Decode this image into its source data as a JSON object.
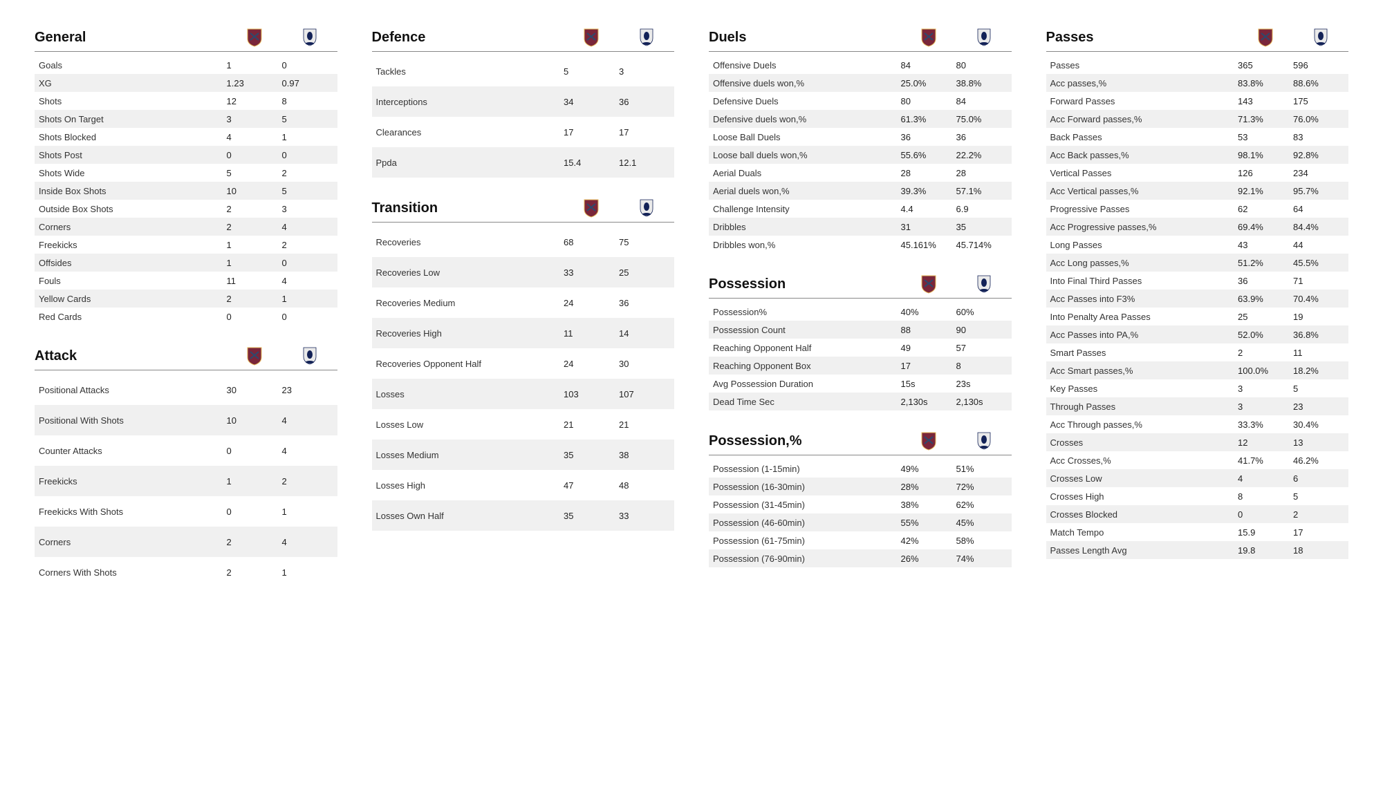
{
  "layout": {
    "team1": "West Ham",
    "team2": "Tottenham",
    "crest1_colors": {
      "body": "#7a263a",
      "accent": "#2c4a6e",
      "outline": "#e6b85a"
    },
    "crest2_colors": {
      "body": "#eaeaea",
      "accent": "#132257",
      "base": "#132257"
    },
    "row_alt_bg": "#f0f0f0",
    "text_color": "#333333",
    "title_font_size": 20,
    "body_font_size": 13
  },
  "sections": {
    "general": {
      "title": "General",
      "rows": [
        {
          "label": "Goals",
          "t1": "1",
          "t2": "0"
        },
        {
          "label": "XG",
          "t1": "1.23",
          "t2": "0.97"
        },
        {
          "label": "Shots",
          "t1": "12",
          "t2": "8"
        },
        {
          "label": "Shots On Target",
          "t1": "3",
          "t2": "5"
        },
        {
          "label": "Shots Blocked",
          "t1": "4",
          "t2": "1"
        },
        {
          "label": "Shots Post",
          "t1": "0",
          "t2": "0"
        },
        {
          "label": "Shots Wide",
          "t1": "5",
          "t2": "2"
        },
        {
          "label": "Inside Box Shots",
          "t1": "10",
          "t2": "5"
        },
        {
          "label": "Outside Box Shots",
          "t1": "2",
          "t2": "3"
        },
        {
          "label": "Corners",
          "t1": "2",
          "t2": "4"
        },
        {
          "label": "Freekicks",
          "t1": "1",
          "t2": "2"
        },
        {
          "label": "Offsides",
          "t1": "1",
          "t2": "0"
        },
        {
          "label": "Fouls",
          "t1": "11",
          "t2": "4"
        },
        {
          "label": "Yellow Cards",
          "t1": "2",
          "t2": "1"
        },
        {
          "label": "Red Cards",
          "t1": "0",
          "t2": "0"
        }
      ]
    },
    "attack": {
      "title": "Attack",
      "rows": [
        {
          "label": "Positional Attacks",
          "t1": "30",
          "t2": "23"
        },
        {
          "label": "Positional With Shots",
          "t1": "10",
          "t2": "4"
        },
        {
          "label": "Counter Attacks",
          "t1": "0",
          "t2": "4"
        },
        {
          "label": "Freekicks",
          "t1": "1",
          "t2": "2"
        },
        {
          "label": "Freekicks With Shots",
          "t1": "0",
          "t2": "1"
        },
        {
          "label": "Corners",
          "t1": "2",
          "t2": "4"
        },
        {
          "label": "Corners With Shots",
          "t1": "2",
          "t2": "1"
        }
      ]
    },
    "defence": {
      "title": "Defence",
      "rows": [
        {
          "label": "Tackles",
          "t1": "5",
          "t2": "3"
        },
        {
          "label": "Interceptions",
          "t1": "34",
          "t2": "36"
        },
        {
          "label": "Clearances",
          "t1": "17",
          "t2": "17"
        },
        {
          "label": "Ppda",
          "t1": "15.4",
          "t2": "12.1"
        }
      ]
    },
    "transition": {
      "title": "Transition",
      "rows": [
        {
          "label": "Recoveries",
          "t1": "68",
          "t2": "75"
        },
        {
          "label": "Recoveries Low",
          "t1": "33",
          "t2": "25"
        },
        {
          "label": "Recoveries Medium",
          "t1": "24",
          "t2": "36"
        },
        {
          "label": "Recoveries High",
          "t1": "11",
          "t2": "14"
        },
        {
          "label": "Recoveries Opponent Half",
          "t1": "24",
          "t2": "30"
        },
        {
          "label": "Losses",
          "t1": "103",
          "t2": "107"
        },
        {
          "label": "Losses Low",
          "t1": "21",
          "t2": "21"
        },
        {
          "label": "Losses Medium",
          "t1": "35",
          "t2": "38"
        },
        {
          "label": "Losses High",
          "t1": "47",
          "t2": "48"
        },
        {
          "label": "Losses Own Half",
          "t1": "35",
          "t2": "33"
        }
      ]
    },
    "duels": {
      "title": "Duels",
      "rows": [
        {
          "label": "Offensive Duels",
          "t1": "84",
          "t2": "80"
        },
        {
          "label": "Offensive duels won,%",
          "t1": "25.0%",
          "t2": "38.8%"
        },
        {
          "label": "Defensive Duels",
          "t1": "80",
          "t2": "84"
        },
        {
          "label": "Defensive duels won,%",
          "t1": "61.3%",
          "t2": "75.0%"
        },
        {
          "label": "Loose Ball Duels",
          "t1": "36",
          "t2": "36"
        },
        {
          "label": "Loose ball duels won,%",
          "t1": "55.6%",
          "t2": "22.2%"
        },
        {
          "label": "Aerial Duals",
          "t1": "28",
          "t2": "28"
        },
        {
          "label": "Aerial duels won,%",
          "t1": "39.3%",
          "t2": "57.1%"
        },
        {
          "label": "Challenge Intensity",
          "t1": "4.4",
          "t2": "6.9"
        },
        {
          "label": "Dribbles",
          "t1": "31",
          "t2": "35"
        },
        {
          "label": "Dribbles won,%",
          "t1": "45.161%",
          "t2": "45.714%"
        }
      ]
    },
    "possession": {
      "title": "Possession",
      "rows": [
        {
          "label": "Possession%",
          "t1": "40%",
          "t2": "60%"
        },
        {
          "label": "Possession Count",
          "t1": "88",
          "t2": "90"
        },
        {
          "label": "Reaching Opponent Half",
          "t1": "49",
          "t2": "57"
        },
        {
          "label": "Reaching Opponent Box",
          "t1": "17",
          "t2": "8"
        },
        {
          "label": "Avg Possession Duration",
          "t1": "15s",
          "t2": "23s"
        },
        {
          "label": "Dead Time Sec",
          "t1": "2,130s",
          "t2": "2,130s"
        }
      ]
    },
    "possession_pct": {
      "title": "Possession,%",
      "rows": [
        {
          "label": "Possession (1-15min)",
          "t1": "49%",
          "t2": "51%"
        },
        {
          "label": "Possession (16-30min)",
          "t1": "28%",
          "t2": "72%"
        },
        {
          "label": "Possession (31-45min)",
          "t1": "38%",
          "t2": "62%"
        },
        {
          "label": "Possession (46-60min)",
          "t1": "55%",
          "t2": "45%"
        },
        {
          "label": "Possession (61-75min)",
          "t1": "42%",
          "t2": "58%"
        },
        {
          "label": "Possession (76-90min)",
          "t1": "26%",
          "t2": "74%"
        }
      ]
    },
    "passes": {
      "title": "Passes",
      "rows": [
        {
          "label": "Passes",
          "t1": "365",
          "t2": "596"
        },
        {
          "label": "Acc passes,%",
          "t1": "83.8%",
          "t2": "88.6%"
        },
        {
          "label": "Forward Passes",
          "t1": "143",
          "t2": "175"
        },
        {
          "label": "Acc Forward passes,%",
          "t1": "71.3%",
          "t2": "76.0%"
        },
        {
          "label": "Back Passes",
          "t1": "53",
          "t2": "83"
        },
        {
          "label": "Acc Back passes,%",
          "t1": "98.1%",
          "t2": "92.8%"
        },
        {
          "label": "Vertical Passes",
          "t1": "126",
          "t2": "234"
        },
        {
          "label": "Acc Vertical passes,%",
          "t1": "92.1%",
          "t2": "95.7%"
        },
        {
          "label": "Progressive Passes",
          "t1": "62",
          "t2": "64"
        },
        {
          "label": "Acc Progressive passes,%",
          "t1": "69.4%",
          "t2": "84.4%"
        },
        {
          "label": "Long Passes",
          "t1": "43",
          "t2": "44"
        },
        {
          "label": "Acc Long passes,%",
          "t1": "51.2%",
          "t2": "45.5%"
        },
        {
          "label": "Into Final Third Passes",
          "t1": "36",
          "t2": "71"
        },
        {
          "label": "Acc Passes into F3%",
          "t1": "63.9%",
          "t2": "70.4%"
        },
        {
          "label": "Into Penalty Area Passes",
          "t1": "25",
          "t2": "19"
        },
        {
          "label": "Acc Passes into PA,%",
          "t1": "52.0%",
          "t2": "36.8%"
        },
        {
          "label": "Smart Passes",
          "t1": "2",
          "t2": "11"
        },
        {
          "label": "Acc Smart passes,%",
          "t1": "100.0%",
          "t2": "18.2%"
        },
        {
          "label": "Key Passes",
          "t1": "3",
          "t2": "5"
        },
        {
          "label": "Through Passes",
          "t1": "3",
          "t2": "23"
        },
        {
          "label": "Acc Through passes,%",
          "t1": "33.3%",
          "t2": "30.4%"
        },
        {
          "label": "Crosses",
          "t1": "12",
          "t2": "13"
        },
        {
          "label": "Acc Crosses,%",
          "t1": "41.7%",
          "t2": "46.2%"
        },
        {
          "label": "Crosses Low",
          "t1": "4",
          "t2": "6"
        },
        {
          "label": "Crosses High",
          "t1": "8",
          "t2": "5"
        },
        {
          "label": "Crosses Blocked",
          "t1": "0",
          "t2": "2"
        },
        {
          "label": "Match Tempo",
          "t1": "15.9",
          "t2": "17"
        },
        {
          "label": "Passes Length Avg",
          "t1": "19.8",
          "t2": "18"
        }
      ]
    }
  },
  "column_layout": [
    [
      {
        "key": "general",
        "tall": false
      },
      {
        "key": "attack",
        "tall": true
      }
    ],
    [
      {
        "key": "defence",
        "tall": true
      },
      {
        "key": "transition",
        "tall": true
      }
    ],
    [
      {
        "key": "duels",
        "tall": false
      },
      {
        "key": "possession",
        "tall": false
      },
      {
        "key": "possession_pct",
        "tall": false
      }
    ],
    [
      {
        "key": "passes",
        "tall": false
      }
    ]
  ]
}
